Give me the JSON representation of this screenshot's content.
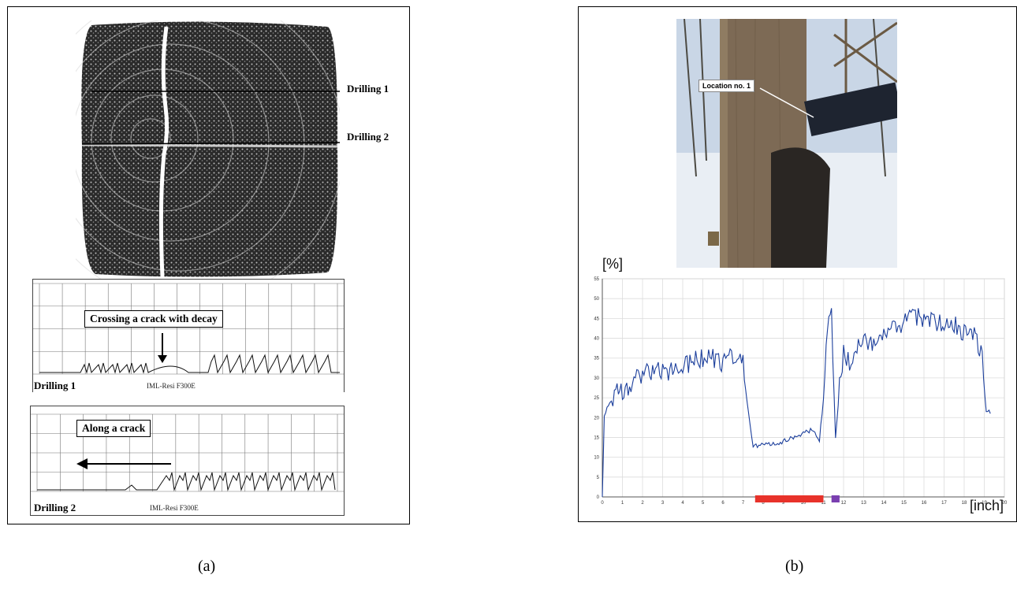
{
  "panel_a": {
    "cross_section": {
      "drilling1_label": "Drilling 1",
      "drilling2_label": "Drilling 2"
    },
    "drilling1_chart": {
      "annotation": "Crossing a crack  with decay",
      "name_label": "Drilling 1",
      "device_label": "IML-Resi F300E"
    },
    "drilling2_chart": {
      "annotation": "Along a crack",
      "name_label": "Drilling 2",
      "device_label": "IML-Resi F300E"
    },
    "caption": "(a)"
  },
  "panel_b": {
    "photo_label": "Location no. 1",
    "caption": "(b)",
    "chart_data": {
      "type": "line",
      "ylabel": "[%]",
      "xlabel": "[inch]",
      "ylim": [
        0,
        55
      ],
      "xlim": [
        0,
        20
      ],
      "x_ticks": [
        0,
        1,
        2,
        3,
        4,
        5,
        6,
        7,
        8,
        9,
        10,
        11,
        12,
        13,
        14,
        15,
        16,
        17,
        18,
        19,
        20
      ],
      "y_ticks": [
        0,
        5,
        10,
        15,
        20,
        25,
        30,
        35,
        40,
        45,
        50,
        55
      ],
      "grid": true,
      "series_color": "#1c3f9c",
      "x": [
        0,
        0.1,
        0.3,
        0.6,
        1,
        1.5,
        2,
        2.5,
        3,
        3.5,
        4,
        4.5,
        5,
        5.5,
        6,
        6.5,
        7,
        7.2,
        7.5,
        8,
        9,
        10,
        10.5,
        10.8,
        11.0,
        11.2,
        11.4,
        11.6,
        11.8,
        12,
        12.3,
        12.6,
        13,
        13.5,
        14,
        14.5,
        15,
        15.5,
        16,
        16.5,
        17,
        17.5,
        18,
        18.5,
        18.9,
        19.1,
        19.3
      ],
      "y": [
        0,
        21,
        23,
        26,
        27,
        29,
        31,
        32,
        31,
        32,
        33,
        34,
        35,
        35,
        34,
        35,
        34,
        24,
        13,
        13,
        14,
        16,
        17,
        14,
        25,
        44,
        46,
        15,
        28,
        36,
        34,
        38,
        39,
        38,
        40,
        42,
        44,
        46,
        45,
        44,
        43,
        43,
        42,
        41,
        36,
        22,
        21
      ],
      "bands": [
        {
          "from": 7.6,
          "to": 11.0,
          "color": "#e8322a"
        },
        {
          "from": 11.4,
          "to": 11.8,
          "color": "#7a3fb0"
        }
      ]
    }
  },
  "colors": {
    "accent_line": "#1c3f9c",
    "decay_band": "#e8322a",
    "void_band": "#7a3fb0"
  }
}
